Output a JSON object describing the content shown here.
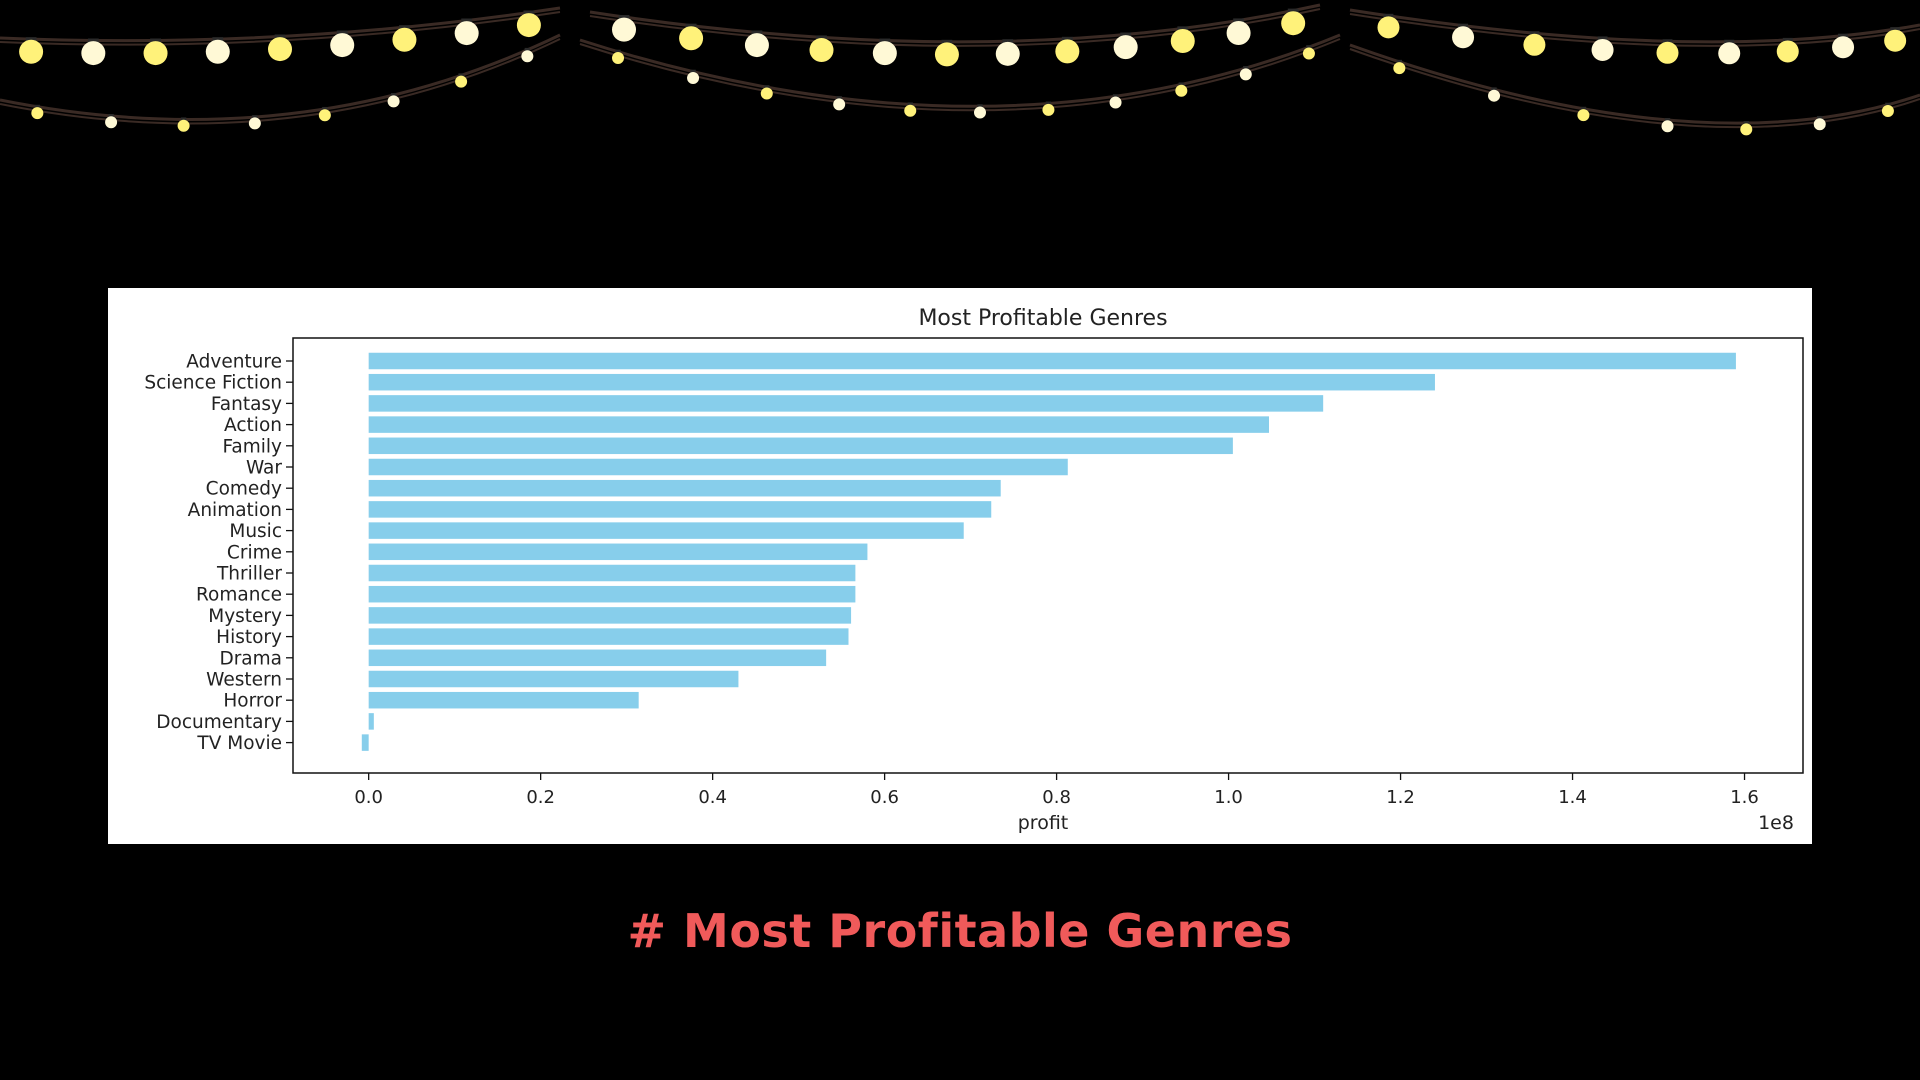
{
  "slide": {
    "caption": "# Most Profitable Genres",
    "caption_color": "#f05a5a",
    "background": "#000000",
    "decoration": "string-lights-icon",
    "bulb_colors": [
      "#fff27a",
      "#fff9d6"
    ],
    "wire_color": "#3a2a24"
  },
  "chart_data": {
    "type": "bar",
    "orientation": "horizontal",
    "title": "Most Profitable Genres",
    "xlabel": "profit",
    "ylabel": "",
    "x_offset_label": "1e8",
    "xlim": [
      -0.088,
      1.668
    ],
    "xticks": [
      0.0,
      0.2,
      0.4,
      0.6,
      0.8,
      1.0,
      1.2,
      1.4,
      1.6
    ],
    "xtick_labels": [
      "0.0",
      "0.2",
      "0.4",
      "0.6",
      "0.8",
      "1.0",
      "1.2",
      "1.4",
      "1.6"
    ],
    "bar_color": "#87ceeb",
    "grid": false,
    "categories": [
      "Adventure",
      "Science Fiction",
      "Fantasy",
      "Action",
      "Family",
      "War",
      "Comedy",
      "Animation",
      "Music",
      "Crime",
      "Thriller",
      "Romance",
      "Mystery",
      "History",
      "Drama",
      "Western",
      "Horror",
      "Documentary",
      "TV Movie"
    ],
    "values": [
      1.59,
      1.24,
      1.11,
      1.047,
      1.005,
      0.813,
      0.735,
      0.724,
      0.692,
      0.58,
      0.566,
      0.566,
      0.561,
      0.558,
      0.532,
      0.43,
      0.314,
      0.006,
      -0.008
    ]
  }
}
